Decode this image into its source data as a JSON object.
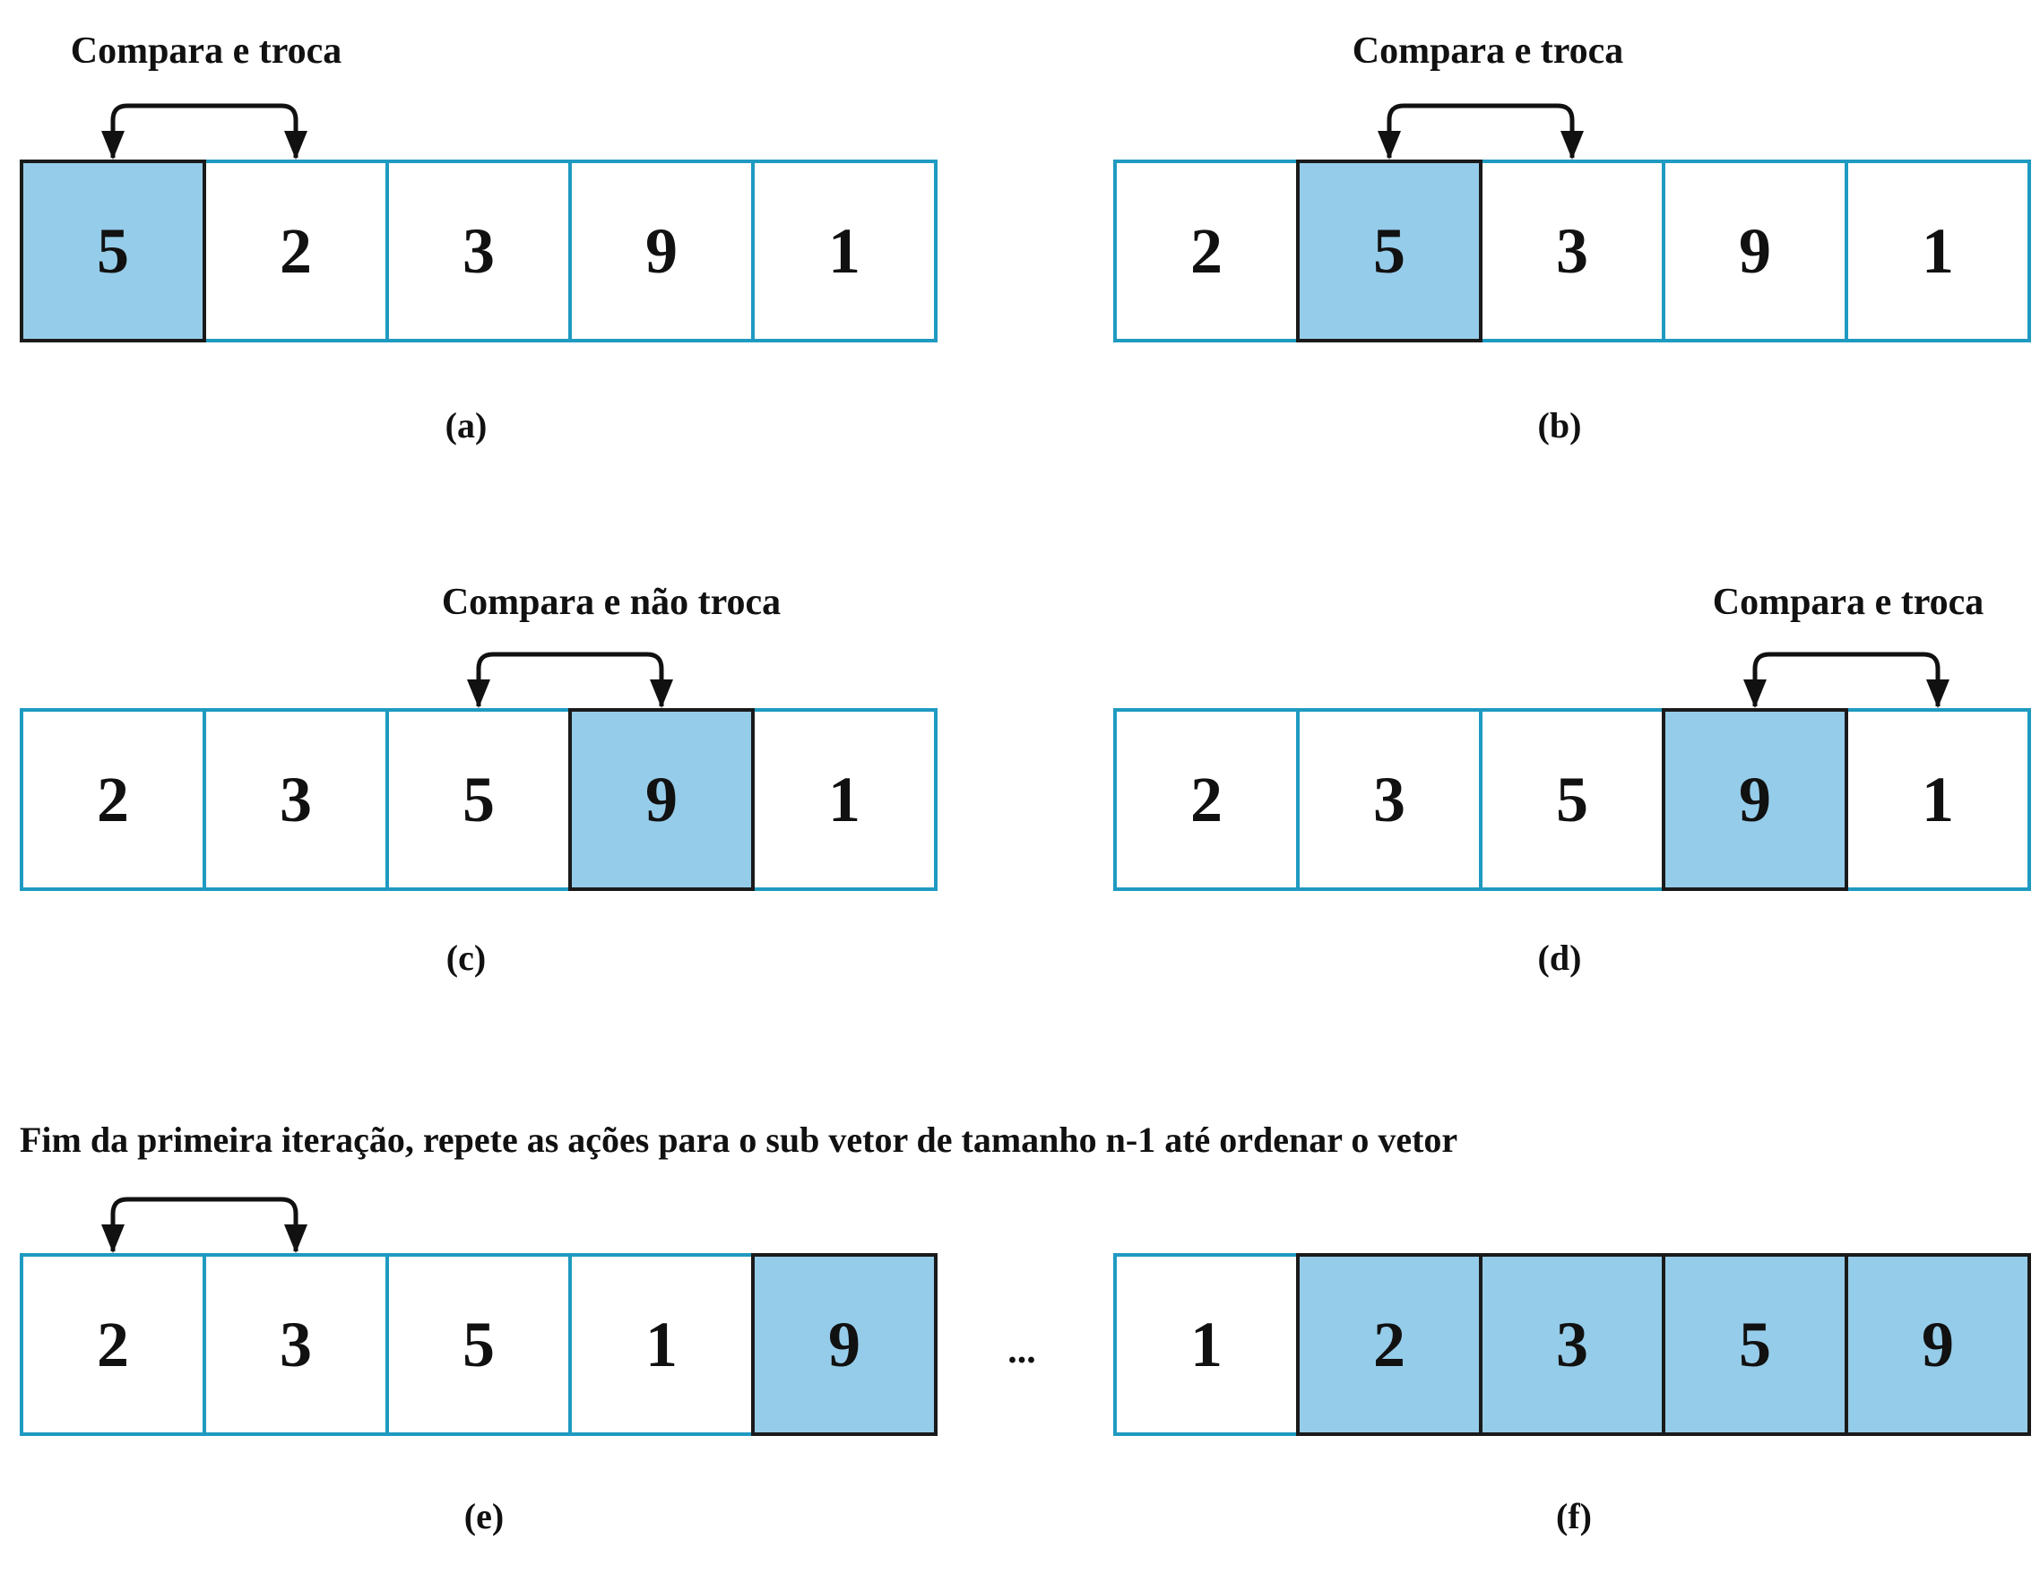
{
  "colors": {
    "cell_border": "#1f9ac1",
    "highlight_fill": "#95cce9",
    "highlight_border": "#1a1a1a",
    "arrow": "#111111",
    "text": "#111111"
  },
  "panels": [
    {
      "id": "a",
      "caption": "(a)",
      "action": "Compara e troca",
      "values": [
        5,
        2,
        3,
        9,
        1
      ],
      "highlighted": [
        0
      ],
      "compare": [
        0,
        1
      ]
    },
    {
      "id": "b",
      "caption": "(b)",
      "action": "Compara e troca",
      "values": [
        2,
        5,
        3,
        9,
        1
      ],
      "highlighted": [
        1
      ],
      "compare": [
        1,
        2
      ]
    },
    {
      "id": "c",
      "caption": "(c)",
      "action": "Compara e não troca",
      "values": [
        2,
        3,
        5,
        9,
        1
      ],
      "highlighted": [
        3
      ],
      "compare": [
        2,
        3
      ]
    },
    {
      "id": "d",
      "caption": "(d)",
      "action": "Compara e troca",
      "values": [
        2,
        3,
        5,
        9,
        1
      ],
      "highlighted": [
        3
      ],
      "compare": [
        3,
        4
      ]
    },
    {
      "id": "e",
      "caption": "(e)",
      "action": "",
      "values": [
        2,
        3,
        5,
        1,
        9
      ],
      "highlighted": [
        4
      ],
      "compare": [
        0,
        1
      ]
    },
    {
      "id": "f",
      "caption": "(f)",
      "action": "",
      "values": [
        1,
        2,
        3,
        5,
        9
      ],
      "highlighted": [
        1,
        2,
        3,
        4
      ],
      "compare": []
    }
  ],
  "note": "Fim da primeira iteração, repete as ações para o sub vetor de tamanho n-1 até ordenar o vetor",
  "ellipsis": "..."
}
